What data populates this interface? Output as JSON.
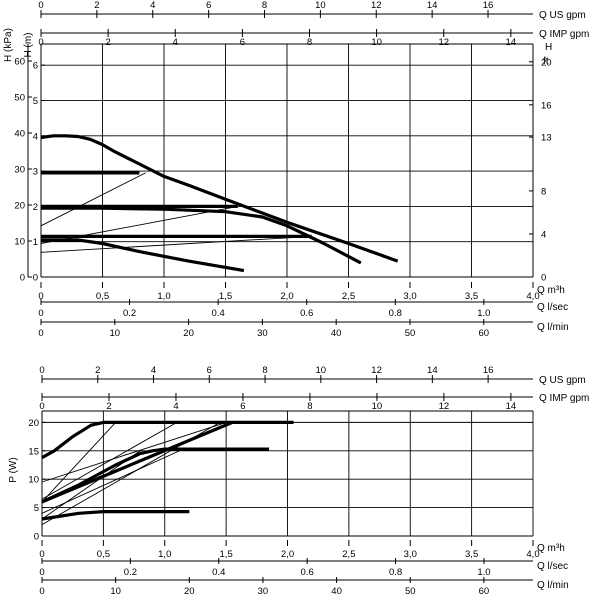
{
  "chart_data": [
    {
      "type": "line",
      "title": "",
      "top_axes": [
        {
          "label": "Q US gpm",
          "ticks": [
            "0",
            "2",
            "4",
            "6",
            "8",
            "10",
            "12",
            "14",
            "16"
          ]
        },
        {
          "label": "Q IMP gpm",
          "ticks": [
            "0",
            "2",
            "4",
            "6",
            "8",
            "10",
            "12",
            "14"
          ]
        }
      ],
      "left_axes": [
        {
          "label": "H (kPa)",
          "ticks": [
            "0",
            "10",
            "20",
            "30",
            "40",
            "50",
            "60"
          ]
        },
        {
          "label": "H (m)",
          "ticks": [
            "0",
            "1",
            "2",
            "3",
            "4",
            "5",
            "6"
          ]
        }
      ],
      "right_axis": {
        "label_line1": "H",
        "label_line2": "ft",
        "ticks": [
          "0",
          "4",
          "8",
          "13",
          "16",
          "20"
        ]
      },
      "bottom_axes": [
        {
          "label": "Q m³h",
          "ticks": [
            "0",
            "0,5",
            "1,0",
            "1,5",
            "2,0",
            "2,5",
            "3,0",
            "3,5",
            "4,0"
          ]
        },
        {
          "label": "Q l/sec",
          "ticks": [
            "0",
            "0.2",
            "0.4",
            "0.6",
            "0.8",
            "1.0"
          ]
        },
        {
          "label": "Q l/min",
          "ticks": [
            "0",
            "10",
            "20",
            "30",
            "40",
            "50",
            "60"
          ]
        }
      ],
      "xlim_m3h": [
        0,
        4.0
      ],
      "ylim_m": [
        0,
        6.6
      ],
      "grid": true,
      "series": [
        {
          "weight": "thick",
          "x": [
            0.0,
            0.1,
            0.2,
            0.3,
            0.4,
            0.5,
            0.6,
            0.8,
            1.0,
            1.2,
            1.5,
            2.0,
            2.5,
            2.9
          ],
          "y": [
            3.95,
            4.0,
            4.0,
            3.98,
            3.9,
            3.75,
            3.55,
            3.2,
            2.85,
            2.6,
            2.2,
            1.55,
            0.95,
            0.45
          ]
        },
        {
          "weight": "thick",
          "x": [
            0.0,
            0.5,
            1.0,
            1.5,
            1.8,
            2.0,
            2.3,
            2.6
          ],
          "y": [
            1.95,
            1.95,
            1.92,
            1.85,
            1.7,
            1.45,
            0.95,
            0.4
          ]
        },
        {
          "weight": "thick",
          "x": [
            0.0,
            0.3,
            0.5,
            0.8,
            1.2,
            1.65
          ],
          "y": [
            1.05,
            1.05,
            0.95,
            0.72,
            0.45,
            0.18
          ]
        },
        {
          "weight": "thick",
          "x": [
            0.0,
            1.6
          ],
          "y": [
            2.0,
            2.0
          ]
        },
        {
          "weight": "thick",
          "x": [
            0.0,
            2.2
          ],
          "y": [
            1.15,
            1.15
          ]
        },
        {
          "weight": "thick",
          "x": [
            0.0,
            0.8
          ],
          "y": [
            2.95,
            2.95
          ]
        },
        {
          "weight": "thin",
          "x": [
            0.0,
            0.85
          ],
          "y": [
            1.45,
            2.95
          ]
        },
        {
          "weight": "thin",
          "x": [
            0.0,
            1.6
          ],
          "y": [
            0.95,
            2.0
          ]
        },
        {
          "weight": "thin",
          "x": [
            0.0,
            2.2
          ],
          "y": [
            0.7,
            1.15
          ]
        }
      ]
    },
    {
      "type": "line",
      "title": "",
      "top_axes": [
        {
          "label": "Q US gpm",
          "ticks": [
            "0",
            "2",
            "4",
            "6",
            "8",
            "10",
            "12",
            "14",
            "16"
          ]
        },
        {
          "label": "Q IMP gpm",
          "ticks": [
            "0",
            "2",
            "4",
            "6",
            "8",
            "10",
            "12",
            "14"
          ]
        }
      ],
      "left_axis": {
        "label": "P (W)",
        "ticks": [
          "0",
          "5",
          "10",
          "15",
          "20"
        ]
      },
      "bottom_axes": [
        {
          "label": "Q m³h",
          "ticks": [
            "0",
            "0,5",
            "1,0",
            "1,5",
            "2,0",
            "2,5",
            "3,0",
            "3,5",
            "4,0"
          ]
        },
        {
          "label": "Q l/sec",
          "ticks": [
            "0",
            "0.2",
            "0.4",
            "0.6",
            "0.8",
            "1.0"
          ]
        },
        {
          "label": "Q l/min",
          "ticks": [
            "0",
            "10",
            "20",
            "30",
            "40",
            "50",
            "60"
          ]
        }
      ],
      "xlim_m3h": [
        0,
        4.0
      ],
      "ylim_w": [
        0,
        22
      ],
      "grid": true,
      "series": [
        {
          "weight": "thick",
          "x": [
            0.0,
            0.1,
            0.25,
            0.4,
            0.5,
            0.6,
            1.0,
            2.05
          ],
          "y": [
            13.8,
            15.0,
            17.5,
            19.5,
            20.0,
            20.0,
            20.0,
            20.0
          ]
        },
        {
          "weight": "thick",
          "x": [
            0.0,
            0.3,
            0.6,
            0.8,
            0.9,
            1.0,
            1.2,
            1.85
          ],
          "y": [
            6.0,
            9.0,
            12.5,
            14.5,
            15.0,
            15.3,
            15.3,
            15.3
          ]
        },
        {
          "weight": "thick",
          "x": [
            0.0,
            0.3,
            0.5,
            1.2
          ],
          "y": [
            3.0,
            4.0,
            4.3,
            4.3
          ]
        },
        {
          "weight": "thick",
          "x": [
            0.0,
            1.55
          ],
          "y": [
            6.0,
            20.0
          ]
        },
        {
          "weight": "thin",
          "x": [
            0.0,
            0.6
          ],
          "y": [
            6.0,
            20.0
          ]
        },
        {
          "weight": "thin",
          "x": [
            0.0,
            1.1
          ],
          "y": [
            6.5,
            20.0
          ]
        },
        {
          "weight": "thin",
          "x": [
            0.0,
            1.5
          ],
          "y": [
            9.5,
            20.0
          ]
        },
        {
          "weight": "thin",
          "x": [
            0.0,
            1.15
          ],
          "y": [
            4.0,
            15.3
          ]
        },
        {
          "weight": "thin",
          "x": [
            0.0,
            0.8
          ],
          "y": [
            3.0,
            15.0
          ]
        },
        {
          "weight": "thin",
          "x": [
            0.0,
            1.45
          ],
          "y": [
            2.0,
            20.0
          ]
        }
      ]
    }
  ]
}
